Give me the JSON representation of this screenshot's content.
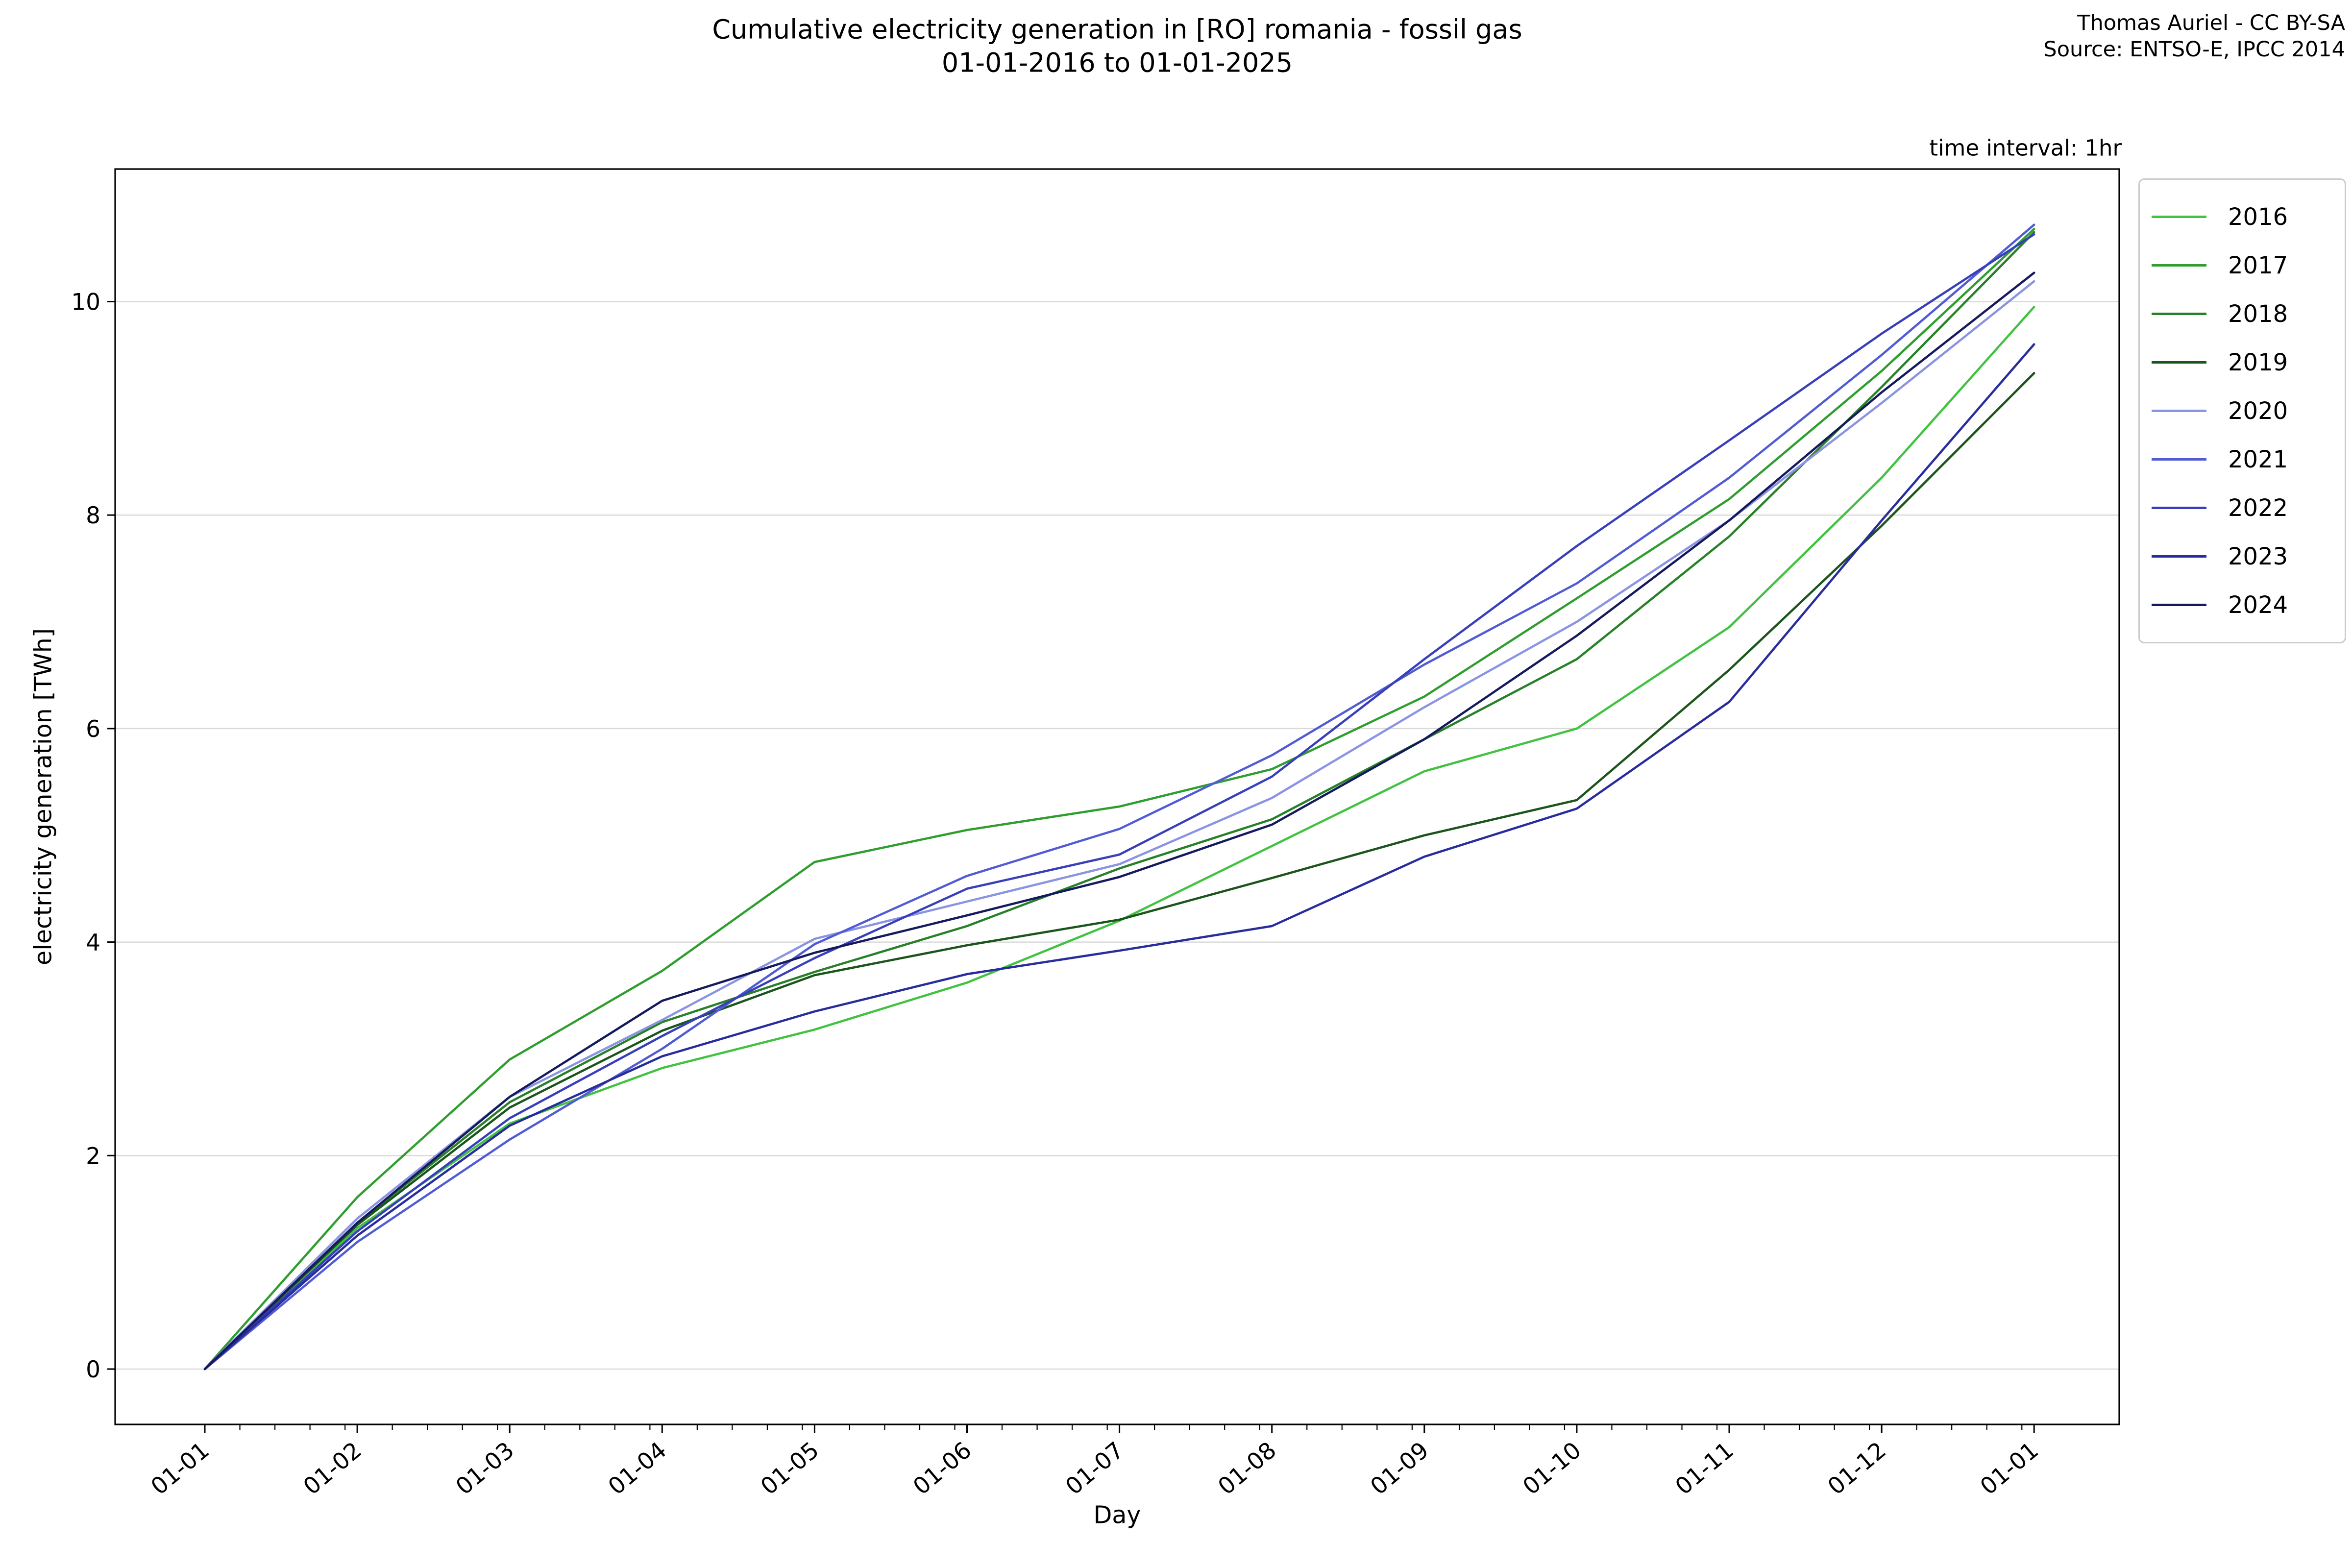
{
  "header": {
    "title_line1": "Cumulative electricity generation in [RO] romania - fossil gas",
    "title_line2": "01-01-2016 to 01-01-2025",
    "credit_line1": "Thomas Auriel - CC BY-SA",
    "credit_line2": "Source: ENTSO-E, IPCC 2014",
    "note": "time interval: 1hr"
  },
  "chart_data": {
    "type": "line",
    "title": "Cumulative electricity generation in [RO] romania - fossil gas 01-01-2016 to 01-01-2025",
    "xlabel": "Day",
    "ylabel": "electricity generation [TWh]",
    "x_ticklabels": [
      "01-01",
      "01-02",
      "01-03",
      "01-04",
      "01-05",
      "01-06",
      "01-07",
      "01-08",
      "01-09",
      "01-10",
      "01-11",
      "01-12",
      "01-01"
    ],
    "y_ticks": [
      0,
      2,
      4,
      6,
      8,
      10
    ],
    "ylim": [
      -0.55,
      11.25
    ],
    "xlim_months": [
      -0.6,
      12.6
    ],
    "grid": true,
    "gridcolor": "#d9d9d9",
    "legend_position": "outside upper right",
    "series": [
      {
        "name": "2016",
        "color": "#41c341",
        "values": [
          0,
          1.32,
          2.3,
          2.82,
          3.18,
          3.62,
          4.2,
          4.9,
          5.6,
          6.0,
          6.95,
          8.35,
          9.95
        ]
      },
      {
        "name": "2017",
        "color": "#2f9e2f",
        "values": [
          0,
          1.61,
          2.9,
          3.73,
          4.75,
          5.05,
          5.27,
          5.62,
          6.3,
          7.22,
          8.15,
          9.35,
          10.68
        ]
      },
      {
        "name": "2018",
        "color": "#288128",
        "values": [
          0,
          1.37,
          2.5,
          3.25,
          3.72,
          4.15,
          4.69,
          5.15,
          5.9,
          6.65,
          7.8,
          9.2,
          10.65
        ]
      },
      {
        "name": "2019",
        "color": "#1c551c",
        "values": [
          0,
          1.35,
          2.45,
          3.17,
          3.69,
          3.97,
          4.21,
          4.6,
          5.0,
          5.33,
          6.55,
          7.9,
          9.33
        ]
      },
      {
        "name": "2020",
        "color": "#8b93e3",
        "values": [
          0,
          1.41,
          2.55,
          3.27,
          4.03,
          4.38,
          4.73,
          5.35,
          6.2,
          7.0,
          7.95,
          9.05,
          10.19
        ]
      },
      {
        "name": "2021",
        "color": "#515bd4",
        "values": [
          0,
          1.19,
          2.15,
          3.0,
          3.98,
          4.62,
          5.06,
          5.75,
          6.6,
          7.36,
          8.35,
          9.5,
          10.72
        ]
      },
      {
        "name": "2022",
        "color": "#383fba",
        "values": [
          0,
          1.29,
          2.35,
          3.12,
          3.85,
          4.5,
          4.82,
          5.55,
          6.65,
          7.71,
          8.7,
          9.7,
          10.63
        ]
      },
      {
        "name": "2023",
        "color": "#282c9c",
        "values": [
          0,
          1.25,
          2.28,
          2.93,
          3.35,
          3.7,
          3.92,
          4.15,
          4.8,
          5.25,
          6.25,
          7.95,
          9.6
        ]
      },
      {
        "name": "2024",
        "color": "#151a5e",
        "values": [
          0,
          1.37,
          2.55,
          3.45,
          3.9,
          4.25,
          4.61,
          5.1,
          5.9,
          6.87,
          7.95,
          9.15,
          10.27
        ]
      }
    ]
  }
}
